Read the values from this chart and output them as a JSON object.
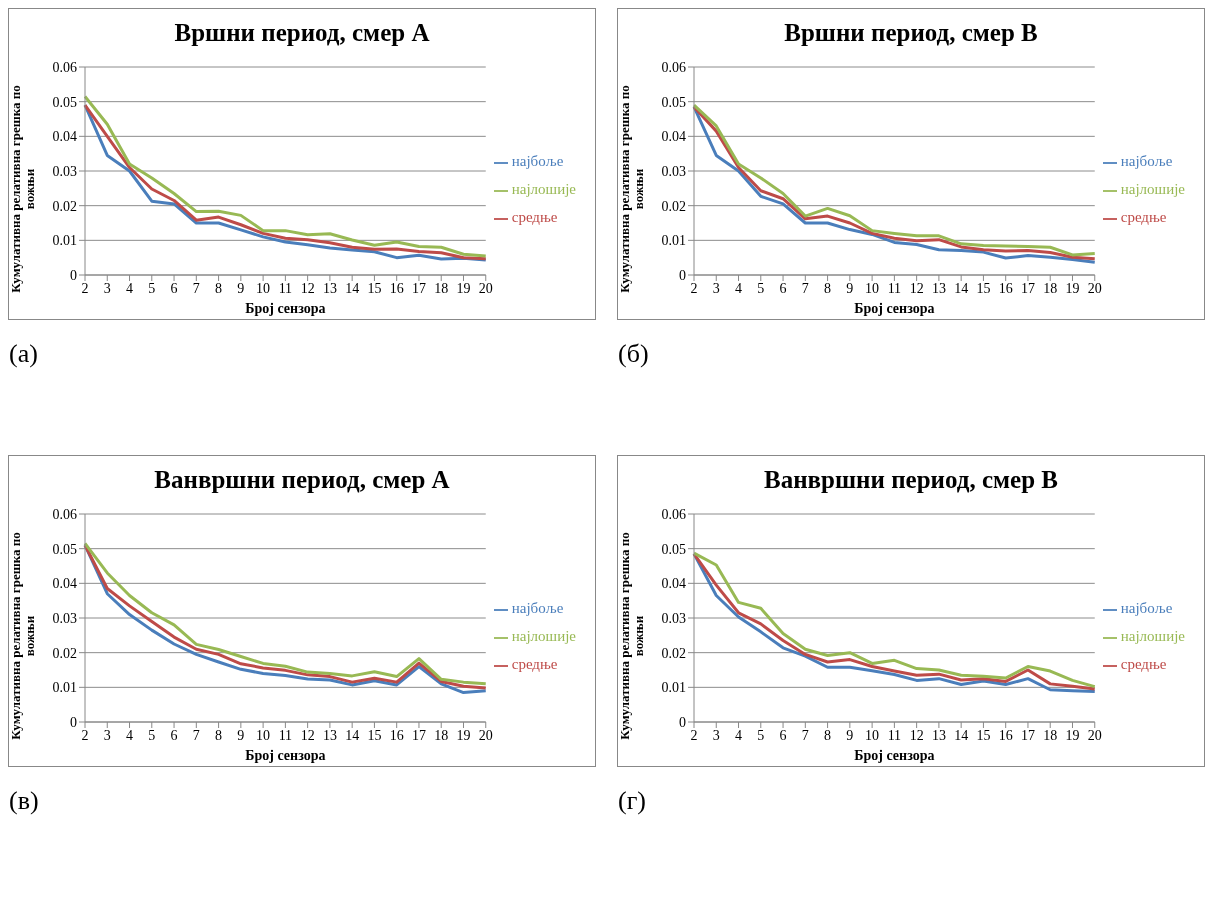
{
  "chart_data": [
    {
      "type": "line",
      "title": "Вршни период, смер А",
      "xlabel": "Број сензора",
      "ylabel": "Кумулативна релативна грешка по вожњи",
      "annotations": [
        "(а)"
      ],
      "categories": [
        "2",
        "3",
        "4",
        "5",
        "6",
        "7",
        "8",
        "9",
        "10",
        "11",
        "12",
        "13",
        "14",
        "15",
        "16",
        "17",
        "18",
        "19",
        "20"
      ],
      "ylim": [
        0,
        0.06
      ],
      "yticks": [
        0,
        0.01,
        0.02,
        0.03,
        0.04,
        0.05,
        0.06
      ],
      "grid": "y",
      "legend": "right",
      "marker": "none",
      "line_style": "solid",
      "series": [
        {
          "name": "најбоље",
          "color": "#4a7ebb",
          "values": [
            0.049,
            0.0345,
            0.03,
            0.0213,
            0.0205,
            0.015,
            0.015,
            0.013,
            0.011,
            0.0095,
            0.0087,
            0.0078,
            0.0072,
            0.0067,
            0.005,
            0.0057,
            0.0046,
            0.0048,
            0.0043
          ]
        },
        {
          "name": "средње",
          "color": "#be4b48",
          "values": [
            0.049,
            0.04,
            0.031,
            0.0248,
            0.0215,
            0.0158,
            0.0167,
            0.0145,
            0.012,
            0.0106,
            0.0102,
            0.0093,
            0.008,
            0.0074,
            0.0075,
            0.0068,
            0.0064,
            0.005,
            0.0047
          ]
        },
        {
          "name": "најлошије",
          "color": "#98b954",
          "values": [
            0.0515,
            0.0435,
            0.032,
            0.028,
            0.0235,
            0.0183,
            0.0184,
            0.0172,
            0.0128,
            0.0128,
            0.0116,
            0.0119,
            0.0101,
            0.0086,
            0.0095,
            0.0082,
            0.008,
            0.006,
            0.0055
          ]
        }
      ]
    },
    {
      "type": "line",
      "title": "Вршни период, смер В",
      "xlabel": "Број сензора",
      "ylabel": "Кумулативна релативна грешка по вожњи",
      "annotations": [
        "(б)"
      ],
      "categories": [
        "2",
        "3",
        "4",
        "5",
        "6",
        "7",
        "8",
        "9",
        "10",
        "11",
        "12",
        "13",
        "14",
        "15",
        "16",
        "17",
        "18",
        "19",
        "20"
      ],
      "ylim": [
        0,
        0.06
      ],
      "yticks": [
        0,
        0.01,
        0.02,
        0.03,
        0.04,
        0.05,
        0.06
      ],
      "grid": "y",
      "legend": "right",
      "marker": "none",
      "line_style": "solid",
      "series": [
        {
          "name": "најбоље",
          "color": "#4a7ebb",
          "values": [
            0.0485,
            0.0345,
            0.03,
            0.0227,
            0.0205,
            0.015,
            0.015,
            0.0131,
            0.0117,
            0.0094,
            0.0088,
            0.0073,
            0.0071,
            0.0066,
            0.0049,
            0.0056,
            0.0051,
            0.0045,
            0.0037
          ]
        },
        {
          "name": "средње",
          "color": "#be4b48",
          "values": [
            0.0485,
            0.0415,
            0.031,
            0.0243,
            0.022,
            0.0162,
            0.017,
            0.015,
            0.012,
            0.0106,
            0.0099,
            0.0102,
            0.0081,
            0.0073,
            0.0069,
            0.0071,
            0.0065,
            0.0051,
            0.0047
          ]
        },
        {
          "name": "најлошије",
          "color": "#98b954",
          "values": [
            0.049,
            0.043,
            0.032,
            0.028,
            0.0235,
            0.017,
            0.0192,
            0.0171,
            0.0128,
            0.012,
            0.0113,
            0.0113,
            0.009,
            0.0085,
            0.0084,
            0.0082,
            0.008,
            0.0058,
            0.0062
          ]
        }
      ]
    },
    {
      "type": "line",
      "title": "Ванвршни период, смер А",
      "xlabel": "Број сензора",
      "ylabel": "Кумулативна релативна грешка по вожњи",
      "annotations": [
        "(в)"
      ],
      "categories": [
        "2",
        "3",
        "4",
        "5",
        "6",
        "7",
        "8",
        "9",
        "10",
        "11",
        "12",
        "13",
        "14",
        "15",
        "16",
        "17",
        "18",
        "19",
        "20"
      ],
      "ylim": [
        0,
        0.06
      ],
      "yticks": [
        0,
        0.01,
        0.02,
        0.03,
        0.04,
        0.05,
        0.06
      ],
      "grid": "y",
      "legend": "right",
      "marker": "none",
      "line_style": "solid",
      "series": [
        {
          "name": "најбоље",
          "color": "#4a7ebb",
          "values": [
            0.051,
            0.037,
            0.031,
            0.0265,
            0.0225,
            0.0195,
            0.0173,
            0.0152,
            0.014,
            0.0134,
            0.0124,
            0.0121,
            0.0107,
            0.0119,
            0.0107,
            0.016,
            0.011,
            0.0085,
            0.009
          ]
        },
        {
          "name": "средње",
          "color": "#be4b48",
          "values": [
            0.051,
            0.0385,
            0.0335,
            0.029,
            0.0245,
            0.021,
            0.0195,
            0.0168,
            0.0156,
            0.0149,
            0.0136,
            0.0131,
            0.0115,
            0.0126,
            0.0115,
            0.017,
            0.0117,
            0.0103,
            0.0098
          ]
        },
        {
          "name": "најлошије",
          "color": "#98b954",
          "values": [
            0.0515,
            0.043,
            0.0365,
            0.0315,
            0.028,
            0.0224,
            0.0209,
            0.0189,
            0.0169,
            0.0161,
            0.0144,
            0.014,
            0.0133,
            0.0145,
            0.0131,
            0.0183,
            0.0123,
            0.0115,
            0.011
          ]
        }
      ]
    },
    {
      "type": "line",
      "title": "Ванвршни период, смер В",
      "xlabel": "Број сензора",
      "ylabel": "Кумулативна релативна грешка по вожњи",
      "annotations": [
        "(г)"
      ],
      "categories": [
        "2",
        "3",
        "4",
        "5",
        "6",
        "7",
        "8",
        "9",
        "10",
        "11",
        "12",
        "13",
        "14",
        "15",
        "16",
        "17",
        "18",
        "19",
        "20"
      ],
      "ylim": [
        0,
        0.06
      ],
      "yticks": [
        0,
        0.01,
        0.02,
        0.03,
        0.04,
        0.05,
        0.06
      ],
      "grid": "y",
      "legend": "right",
      "marker": "none",
      "line_style": "solid",
      "series": [
        {
          "name": "најбоље",
          "color": "#4a7ebb",
          "values": [
            0.0485,
            0.0365,
            0.0303,
            0.026,
            0.0214,
            0.019,
            0.0158,
            0.0158,
            0.0148,
            0.0137,
            0.012,
            0.0125,
            0.0108,
            0.0118,
            0.0108,
            0.0125,
            0.0093,
            0.009,
            0.0088
          ]
        },
        {
          "name": "средње",
          "color": "#be4b48",
          "values": [
            0.0485,
            0.0395,
            0.0315,
            0.0283,
            0.0235,
            0.0195,
            0.0173,
            0.018,
            0.016,
            0.0147,
            0.0135,
            0.0138,
            0.0121,
            0.0125,
            0.0117,
            0.015,
            0.011,
            0.0103,
            0.0095
          ]
        },
        {
          "name": "најлошије",
          "color": "#98b954",
          "values": [
            0.0487,
            0.0453,
            0.0345,
            0.0328,
            0.0255,
            0.021,
            0.0192,
            0.02,
            0.0169,
            0.0178,
            0.0154,
            0.015,
            0.0135,
            0.0132,
            0.0127,
            0.016,
            0.0147,
            0.012,
            0.0102
          ]
        }
      ]
    }
  ]
}
